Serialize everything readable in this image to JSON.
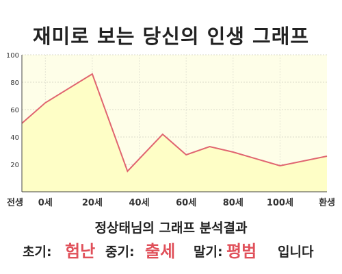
{
  "title": "재미로 보는 당신의 인생 그래프",
  "chart_data": {
    "type": "area",
    "x": [
      -10,
      0,
      20,
      35,
      50,
      60,
      70,
      80,
      100,
      120
    ],
    "y": [
      50,
      65,
      86,
      15,
      42,
      27,
      33,
      29,
      19,
      26
    ],
    "xlim": [
      -10,
      120
    ],
    "ylim": [
      0,
      100
    ],
    "y_ticks": [
      20,
      40,
      60,
      80,
      100
    ],
    "x_tick_values": [
      -10,
      0,
      20,
      40,
      60,
      80,
      100,
      120
    ],
    "x_tick_labels": [
      "전생",
      "0세",
      "20세",
      "40세",
      "60세",
      "80세",
      "100세",
      "환생"
    ],
    "grid": true,
    "fill_color": "#fefec6",
    "line_color": "#e06570"
  },
  "subtitle": "정상태님의 그래프 분석결과",
  "result": {
    "early_label": "초기:",
    "early_value": "험난",
    "mid_label": "중기:",
    "mid_value": "출세",
    "late_label": "말기:",
    "late_value": "평범",
    "ending": "입니다"
  }
}
